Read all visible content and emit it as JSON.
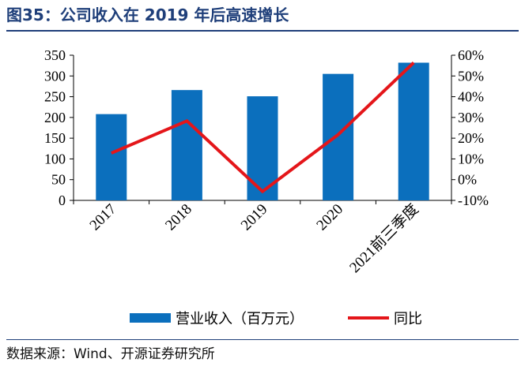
{
  "title": "图35：公司收入在 2019 年后高速增长",
  "source": "数据来源：Wind、开源证券研究所",
  "colors": {
    "bar": "#0b6fbd",
    "line": "#e4161a",
    "title": "#1f3f7a"
  },
  "chart_data": {
    "type": "bar",
    "categories": [
      "2017",
      "2018",
      "2019",
      "2020",
      "2021前三季度"
    ],
    "series": [
      {
        "name": "营业收入（百万元）",
        "type": "bar",
        "axis": "left",
        "values": [
          208,
          266,
          251,
          305,
          332
        ]
      },
      {
        "name": "同比",
        "type": "line",
        "axis": "right",
        "values": [
          12.8,
          28.3,
          -5.7,
          21.7,
          56.4
        ]
      }
    ],
    "y_left": {
      "ylim": [
        0,
        350
      ],
      "ticks": [
        "0",
        "50",
        "100",
        "150",
        "200",
        "250",
        "300",
        "350"
      ]
    },
    "y_right": {
      "ylim": [
        -10,
        60
      ],
      "ticks": [
        "-10%",
        "0%",
        "10%",
        "20%",
        "30%",
        "40%",
        "50%",
        "60%"
      ]
    },
    "legend_position": "bottom",
    "grid": false
  }
}
